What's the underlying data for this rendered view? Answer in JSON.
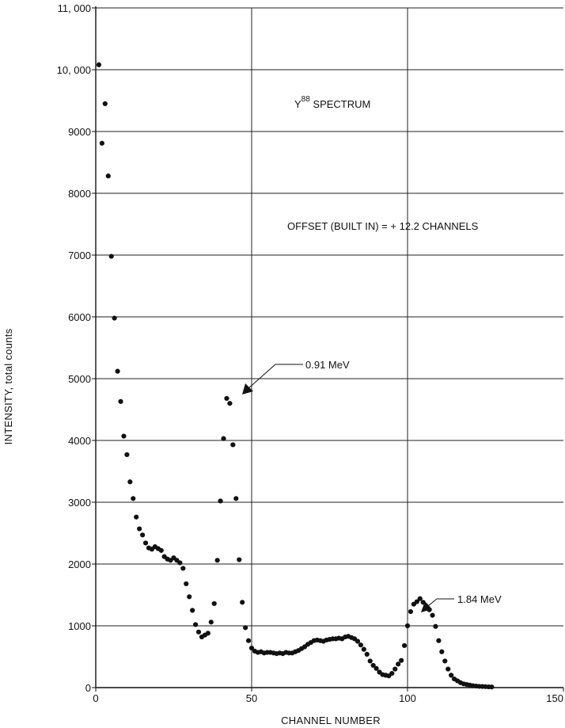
{
  "chart_data": {
    "type": "scatter",
    "title": {
      "base": "Y",
      "superscript": "88",
      "rest": " SPECTRUM"
    },
    "xlabel": "CHANNEL NUMBER",
    "ylabel": "INTENSITY,  total  counts",
    "xlim": [
      0,
      150
    ],
    "ylim": [
      0,
      11000
    ],
    "xticks": [
      0,
      50,
      100,
      150
    ],
    "xtick_labels": [
      "0",
      "50",
      "100",
      "150"
    ],
    "yticks": [
      0,
      1000,
      2000,
      3000,
      4000,
      5000,
      6000,
      7000,
      8000,
      9000,
      10000,
      11000
    ],
    "ytick_labels": [
      "0",
      "1000",
      "2000",
      "3000",
      "4000",
      "5000",
      "6000",
      "7000",
      "8000",
      "9000",
      "10, 000",
      "11, 000"
    ],
    "grid": true,
    "legend": "none",
    "marker_color": "#111111",
    "annotations": [
      {
        "text": "OFFSET (BUILT IN) = + 12.2 CHANNELS"
      },
      {
        "text": "0.91 MeV",
        "x": 47,
        "y": 4800
      },
      {
        "text": "1.84 MeV",
        "x": 105,
        "y": 1500
      }
    ],
    "series": [
      {
        "x": [
          1,
          2,
          3,
          4,
          5,
          6,
          7,
          8,
          9,
          10,
          11,
          12,
          13,
          14,
          15,
          16,
          17,
          18,
          19,
          20,
          21,
          22,
          23,
          24,
          25,
          26,
          27,
          28,
          29,
          30,
          31,
          32,
          33,
          34,
          35,
          36,
          37,
          38,
          39,
          40,
          41,
          42,
          43,
          44,
          45,
          46,
          47,
          48,
          49,
          50,
          51,
          52,
          53,
          54,
          55,
          56,
          57,
          58,
          59,
          60,
          61,
          62,
          63,
          64,
          65,
          66,
          67,
          68,
          69,
          70,
          71,
          72,
          73,
          74,
          75,
          76,
          77,
          78,
          79,
          80,
          81,
          82,
          83,
          84,
          85,
          86,
          87,
          88,
          89,
          90,
          91,
          92,
          93,
          94,
          95,
          96,
          97,
          98,
          99,
          100,
          101,
          102,
          103,
          104,
          105,
          106,
          107,
          108,
          109,
          110,
          111,
          112,
          113,
          114,
          115,
          116,
          117,
          118,
          119,
          120,
          121,
          122,
          123,
          124,
          125,
          126,
          127
        ],
        "y": [
          10080,
          8810,
          9450,
          8280,
          6980,
          5980,
          5120,
          4630,
          4070,
          3770,
          3330,
          3060,
          2760,
          2570,
          2470,
          2340,
          2260,
          2240,
          2280,
          2250,
          2220,
          2120,
          2080,
          2060,
          2100,
          2060,
          2020,
          1930,
          1680,
          1470,
          1250,
          1020,
          900,
          820,
          850,
          880,
          1060,
          1360,
          2060,
          3020,
          4030,
          4680,
          4600,
          3930,
          3060,
          2070,
          1380,
          970,
          760,
          640,
          590,
          570,
          580,
          560,
          570,
          570,
          560,
          550,
          560,
          550,
          570,
          560,
          560,
          580,
          600,
          630,
          660,
          700,
          730,
          760,
          770,
          760,
          750,
          770,
          780,
          790,
          790,
          800,
          790,
          820,
          830,
          810,
          790,
          750,
          690,
          620,
          540,
          430,
          360,
          310,
          250,
          210,
          200,
          190,
          230,
          300,
          380,
          440,
          680,
          1000,
          1230,
          1350,
          1390,
          1440,
          1380,
          1320,
          1260,
          1170,
          990,
          760,
          580,
          430,
          300,
          200,
          140,
          110,
          80,
          60,
          50,
          40,
          30,
          25,
          20,
          18,
          15,
          12,
          10
        ]
      }
    ]
  }
}
